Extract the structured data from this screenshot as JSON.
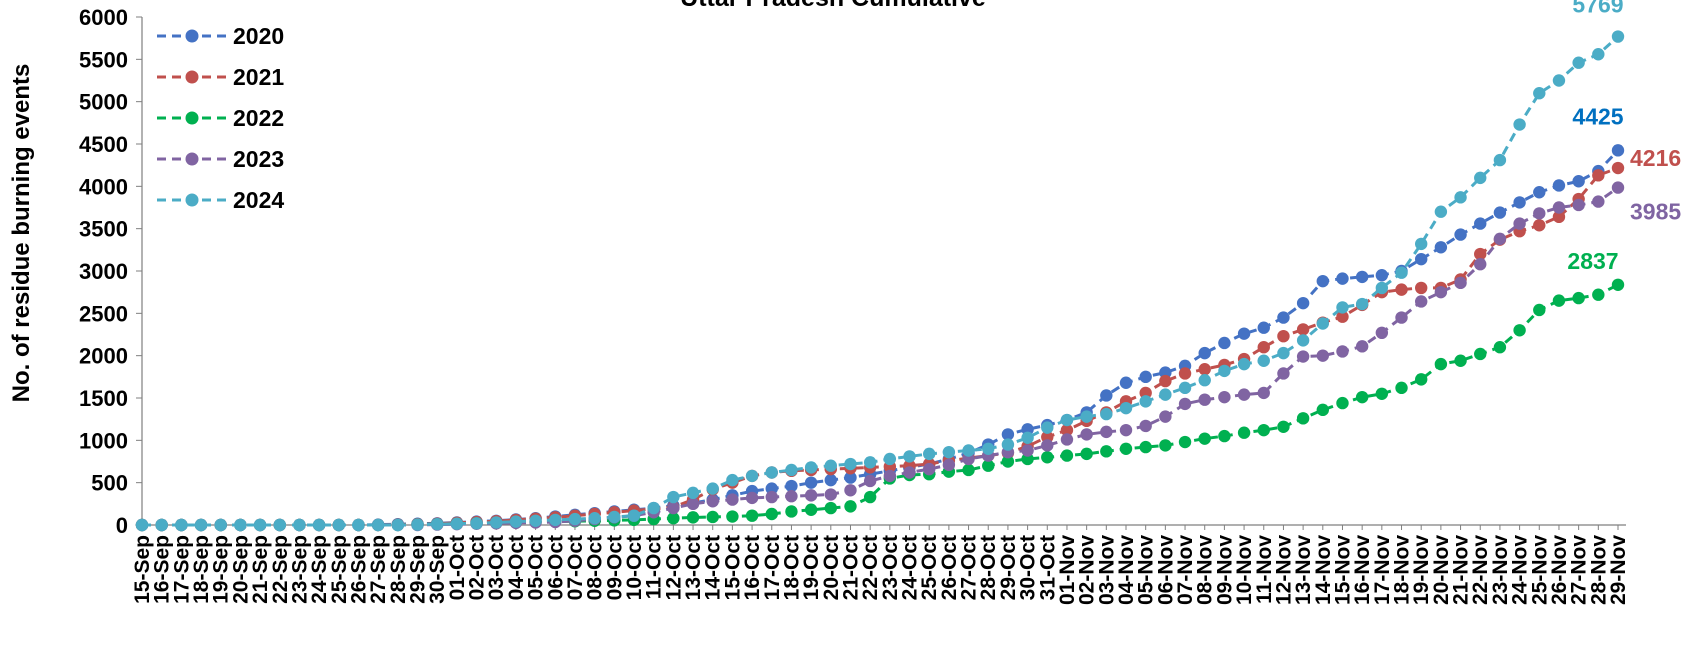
{
  "chart_data": {
    "type": "line",
    "title": "Uttar Pradesh Cumulative",
    "xlabel": "",
    "ylabel": "No. of residue burning events",
    "ylim": [
      0,
      6000
    ],
    "yticks": [
      0,
      500,
      1000,
      1500,
      2000,
      2500,
      3000,
      3500,
      4000,
      4500,
      5000,
      5500,
      6000
    ],
    "grid": false,
    "legend_position": "top-left",
    "x": [
      "15-Sep",
      "16-Sep",
      "17-Sep",
      "18-Sep",
      "19-Sep",
      "20-Sep",
      "21-Sep",
      "22-Sep",
      "23-Sep",
      "24-Sep",
      "25-Sep",
      "26-Sep",
      "27-Sep",
      "28-Sep",
      "29-Sep",
      "30-Sep",
      "01-Oct",
      "02-Oct",
      "03-Oct",
      "04-Oct",
      "05-Oct",
      "06-Oct",
      "07-Oct",
      "08-Oct",
      "09-Oct",
      "10-Oct",
      "11-Oct",
      "12-Oct",
      "13-Oct",
      "14-Oct",
      "15-Oct",
      "16-Oct",
      "17-Oct",
      "18-Oct",
      "19-Oct",
      "20-Oct",
      "21-Oct",
      "22-Oct",
      "23-Oct",
      "24-Oct",
      "25-Oct",
      "26-Oct",
      "27-Oct",
      "28-Oct",
      "29-Oct",
      "30-Oct",
      "31-Oct",
      "01-Nov",
      "02-Nov",
      "03-Nov",
      "04-Nov",
      "05-Nov",
      "06-Nov",
      "07-Nov",
      "08-Nov",
      "09-Nov",
      "10-Nov",
      "11-Nov",
      "12-Nov",
      "13-Nov",
      "14-Nov",
      "15-Nov",
      "16-Nov",
      "17-Nov",
      "18-Nov",
      "19-Nov",
      "20-Nov",
      "21-Nov",
      "22-Nov",
      "23-Nov",
      "24-Nov",
      "25-Nov",
      "26-Nov",
      "27-Nov",
      "28-Nov",
      "29-Nov"
    ],
    "series": [
      {
        "name": "2020",
        "color": "#4472C4",
        "end_label": "4425",
        "label_color": "#0070C0",
        "values": [
          0,
          0,
          0,
          0,
          0,
          0,
          0,
          0,
          0,
          0,
          0,
          0,
          5,
          10,
          15,
          20,
          30,
          40,
          50,
          65,
          80,
          100,
          120,
          140,
          160,
          180,
          200,
          230,
          260,
          300,
          350,
          400,
          430,
          460,
          500,
          530,
          560,
          600,
          640,
          680,
          720,
          780,
          850,
          950,
          1070,
          1130,
          1180,
          1240,
          1330,
          1530,
          1680,
          1750,
          1800,
          1880,
          2030,
          2150,
          2260,
          2330,
          2450,
          2620,
          2880,
          2910,
          2930,
          2950,
          3000,
          3140,
          3280,
          3430,
          3560,
          3690,
          3810,
          3930,
          4010,
          4060,
          4180,
          4425
        ]
      },
      {
        "name": "2021",
        "color": "#C0504D",
        "end_label": "4216",
        "label_color": "#C0504D",
        "values": [
          0,
          0,
          0,
          0,
          0,
          0,
          0,
          0,
          0,
          0,
          0,
          0,
          0,
          5,
          10,
          15,
          25,
          35,
          45,
          60,
          75,
          90,
          110,
          130,
          150,
          170,
          190,
          210,
          300,
          420,
          500,
          580,
          620,
          640,
          650,
          660,
          670,
          680,
          690,
          700,
          720,
          760,
          790,
          820,
          850,
          930,
          1040,
          1120,
          1230,
          1330,
          1460,
          1560,
          1700,
          1790,
          1840,
          1890,
          1960,
          2100,
          2230,
          2310,
          2390,
          2460,
          2600,
          2750,
          2780,
          2800,
          2800,
          2900,
          3200,
          3370,
          3470,
          3540,
          3640,
          3850,
          4130,
          4216
        ]
      },
      {
        "name": "2022",
        "color": "#00B050",
        "end_label": "2837",
        "label_color": "#00B050",
        "values": [
          0,
          0,
          0,
          0,
          0,
          0,
          0,
          0,
          0,
          0,
          0,
          0,
          0,
          0,
          5,
          10,
          15,
          20,
          25,
          30,
          35,
          40,
          45,
          50,
          55,
          60,
          70,
          80,
          90,
          95,
          100,
          110,
          130,
          160,
          180,
          200,
          220,
          330,
          550,
          590,
          600,
          630,
          650,
          700,
          750,
          780,
          800,
          820,
          840,
          870,
          900,
          920,
          940,
          980,
          1020,
          1050,
          1090,
          1120,
          1160,
          1260,
          1360,
          1440,
          1510,
          1550,
          1620,
          1720,
          1900,
          1940,
          2020,
          2100,
          2300,
          2540,
          2650,
          2680,
          2720,
          2837
        ]
      },
      {
        "name": "2023",
        "color": "#8064A2",
        "end_label": "3985",
        "label_color": "#7F64A2",
        "values": [
          0,
          0,
          0,
          0,
          0,
          0,
          0,
          0,
          0,
          0,
          0,
          0,
          0,
          0,
          0,
          5,
          10,
          15,
          20,
          25,
          30,
          35,
          50,
          70,
          90,
          110,
          150,
          200,
          250,
          280,
          300,
          320,
          330,
          340,
          350,
          360,
          410,
          520,
          580,
          620,
          660,
          710,
          780,
          820,
          860,
          880,
          940,
          1010,
          1070,
          1100,
          1120,
          1170,
          1280,
          1430,
          1480,
          1510,
          1540,
          1560,
          1790,
          1990,
          2000,
          2050,
          2110,
          2270,
          2450,
          2640,
          2750,
          2860,
          3080,
          3380,
          3560,
          3680,
          3750,
          3780,
          3820,
          3985
        ]
      },
      {
        "name": "2024",
        "color": "#4BACC6",
        "end_label": "5769",
        "label_color": "#4BACC6",
        "values": [
          0,
          0,
          0,
          0,
          0,
          0,
          0,
          0,
          0,
          0,
          0,
          0,
          0,
          0,
          5,
          10,
          15,
          20,
          30,
          40,
          50,
          60,
          70,
          80,
          95,
          110,
          200,
          330,
          380,
          430,
          530,
          580,
          620,
          650,
          680,
          700,
          720,
          740,
          780,
          810,
          840,
          860,
          880,
          900,
          950,
          1030,
          1150,
          1240,
          1280,
          1310,
          1380,
          1460,
          1540,
          1620,
          1710,
          1820,
          1900,
          1940,
          2030,
          2180,
          2380,
          2570,
          2610,
          2800,
          2980,
          3320,
          3700,
          3870,
          4100,
          4310,
          4730,
          5100,
          5250,
          5460,
          5560,
          5769
        ]
      }
    ]
  }
}
